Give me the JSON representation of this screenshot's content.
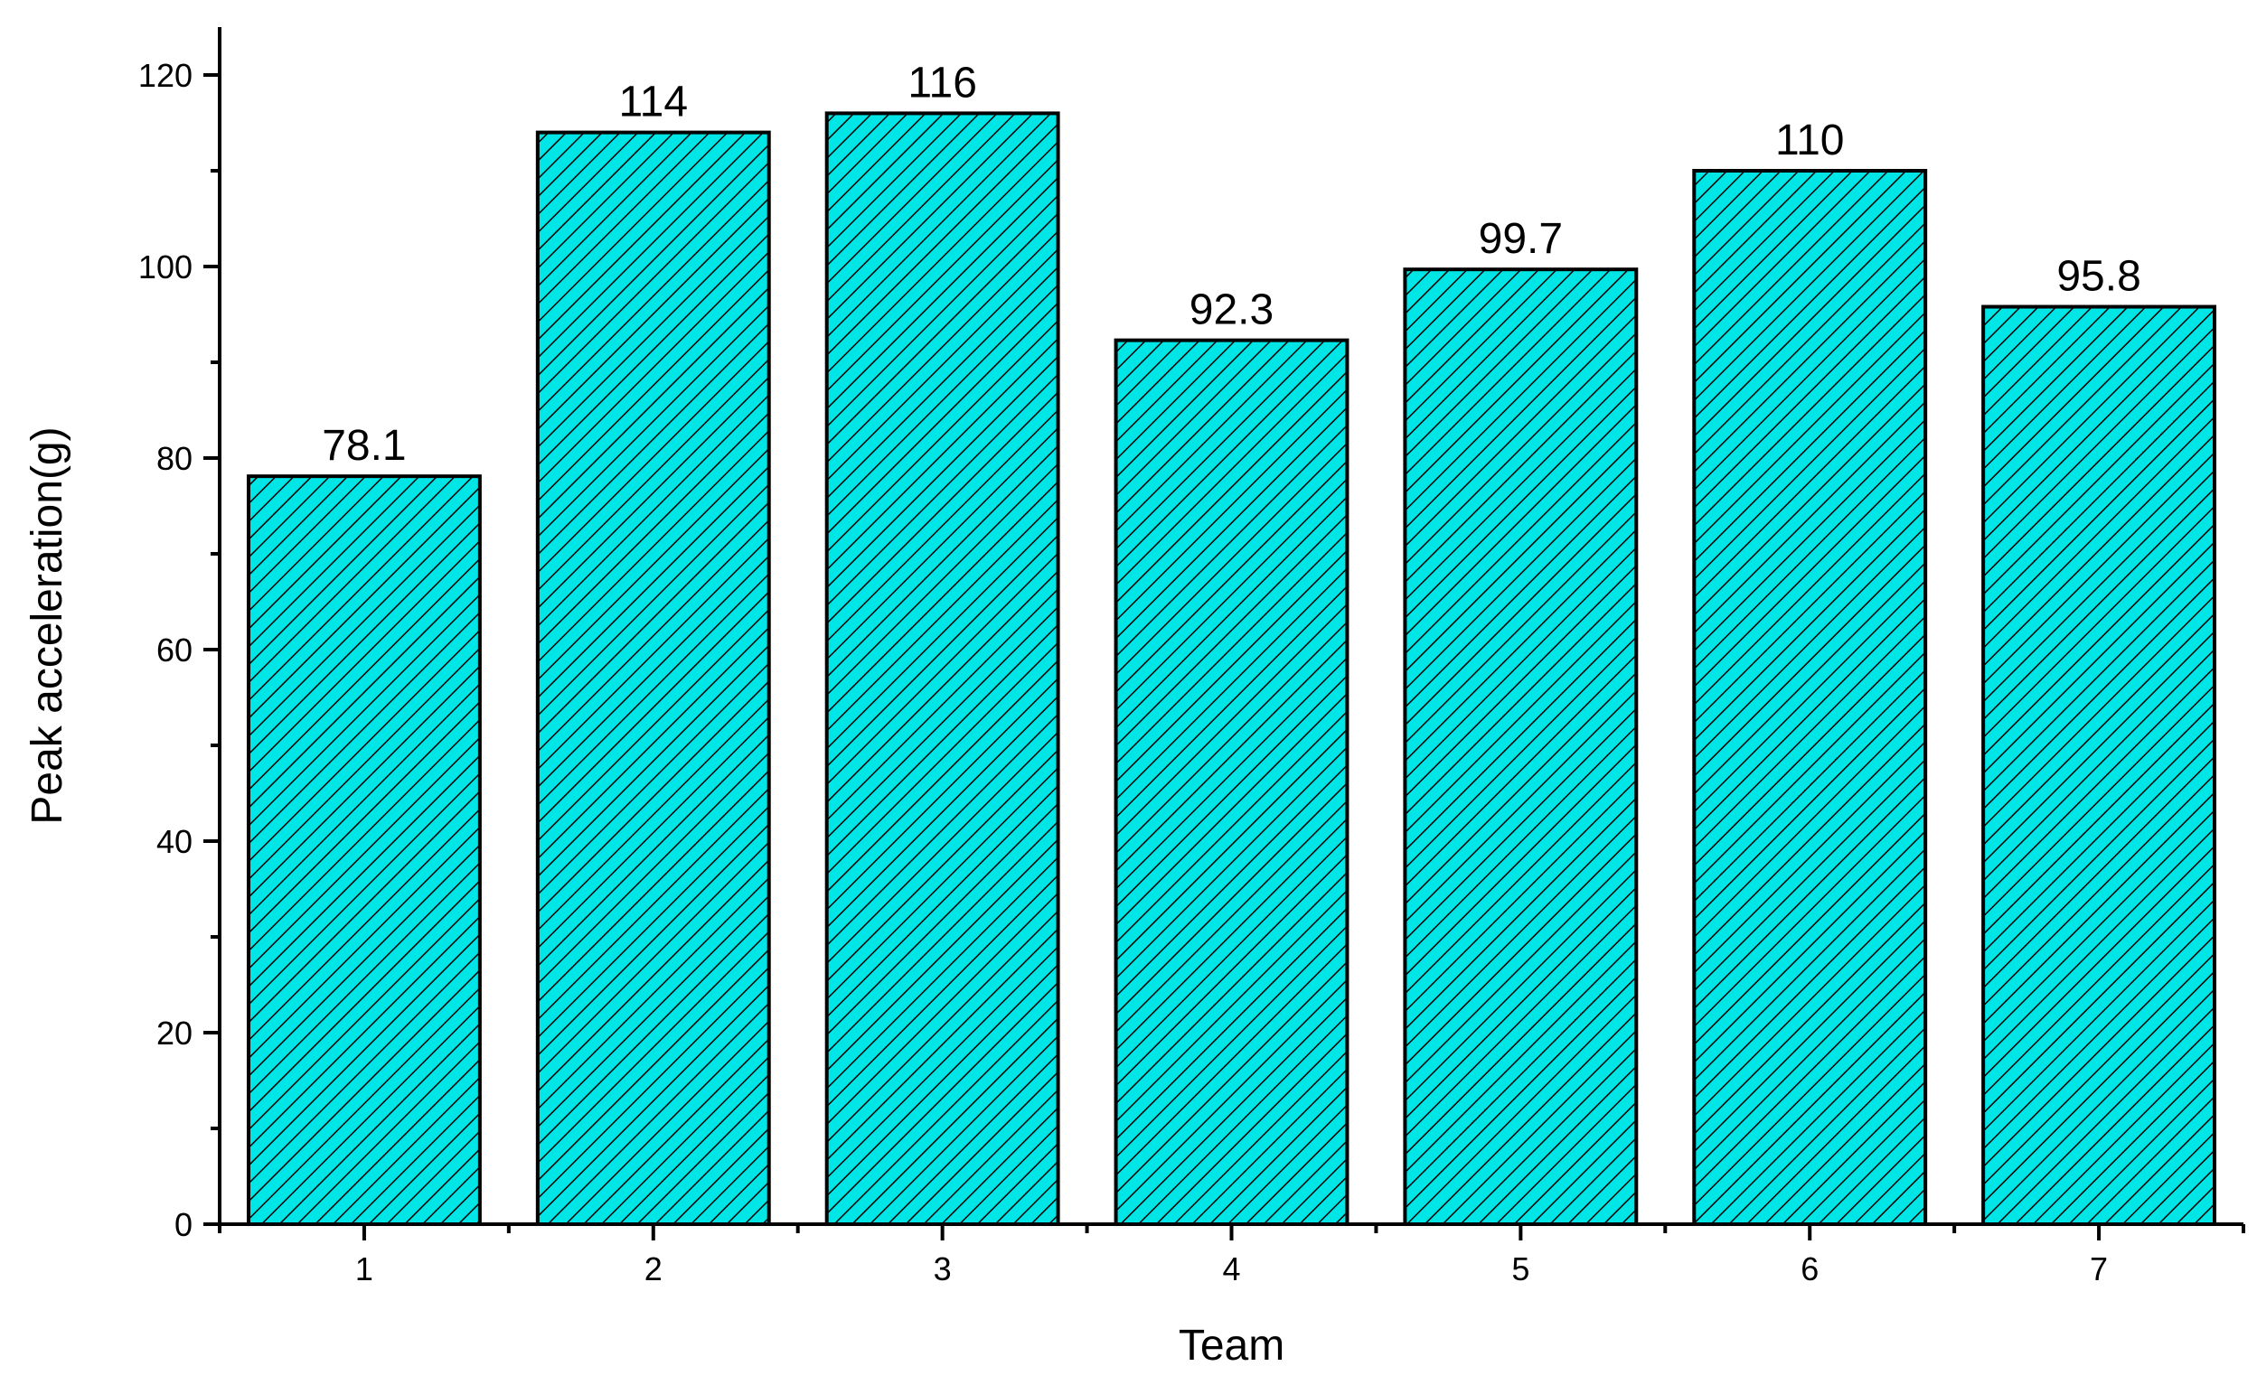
{
  "chart_data": {
    "type": "bar",
    "categories": [
      "1",
      "2",
      "3",
      "4",
      "5",
      "6",
      "7"
    ],
    "values": [
      78.1,
      114,
      116,
      92.3,
      99.7,
      110,
      95.8
    ],
    "data_labels": [
      "78.1",
      "114",
      "116",
      "92.3",
      "99.7",
      "110",
      "95.8"
    ],
    "xlabel": "Team",
    "ylabel": "Peak acceleration(g)",
    "ylim": [
      0,
      125
    ],
    "yticks": [
      0,
      20,
      40,
      60,
      80,
      100,
      120
    ],
    "yticks_labels": [
      "0",
      "20",
      "40",
      "60",
      "80",
      "100",
      "120"
    ],
    "grid": false,
    "bar_color": "#00e5e5",
    "hatch_color": "#000000"
  }
}
